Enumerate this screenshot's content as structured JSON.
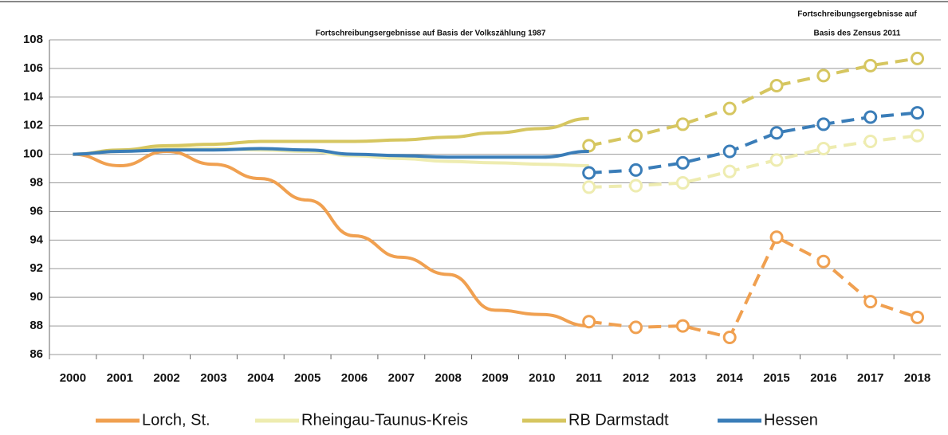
{
  "chart_data": {
    "type": "line",
    "annotations": [
      "Fortschreibungsergebnisse auf Basis der Volkszählung 1987",
      [
        "Fortschreibungsergebnisse auf",
        "Basis des Zensus 2011"
      ]
    ],
    "categories": [
      "2000",
      "2001",
      "2002",
      "2003",
      "2004",
      "2005",
      "2006",
      "2007",
      "2008",
      "2009",
      "2010",
      "2011",
      "2012",
      "2013",
      "2014",
      "2015",
      "2016",
      "2017",
      "2018"
    ],
    "series": [
      {
        "name": "Lorch, St.",
        "color": "#f0a050",
        "values": [
          100,
          99.2,
          100.2,
          99.3,
          98.3,
          96.8,
          94.3,
          92.8,
          91.6,
          89.1,
          88.8,
          88.0,
          null,
          null,
          null,
          null,
          null,
          null,
          null
        ],
        "zensus_values": [
          null,
          null,
          null,
          null,
          null,
          null,
          null,
          null,
          null,
          null,
          null,
          88.3,
          87.9,
          88.0,
          87.2,
          94.2,
          92.5,
          89.7,
          88.6
        ]
      },
      {
        "name": "Rheingau-Taunus-Kreis",
        "color": "#eeecb0",
        "values": [
          100,
          100.2,
          100.4,
          100.4,
          100.3,
          100.2,
          99.9,
          99.7,
          99.5,
          99.4,
          99.3,
          99.2,
          null,
          null,
          null,
          null,
          null,
          null,
          null
        ],
        "zensus_values": [
          null,
          null,
          null,
          null,
          null,
          null,
          null,
          null,
          null,
          null,
          null,
          97.7,
          97.8,
          98.0,
          98.8,
          99.6,
          100.4,
          100.9,
          101.3
        ]
      },
      {
        "name": "RB Darmstadt",
        "color": "#d6c660",
        "values": [
          100,
          100.3,
          100.6,
          100.7,
          100.9,
          100.9,
          100.9,
          101.0,
          101.2,
          101.5,
          101.8,
          102.5,
          null,
          null,
          null,
          null,
          null,
          null,
          null
        ],
        "zensus_values": [
          null,
          null,
          null,
          null,
          null,
          null,
          null,
          null,
          null,
          null,
          null,
          100.6,
          101.3,
          102.1,
          103.2,
          104.8,
          105.5,
          106.2,
          106.7
        ]
      },
      {
        "name": "Hessen",
        "color": "#3a7db8",
        "values": [
          100,
          100.2,
          100.3,
          100.3,
          100.4,
          100.3,
          100.0,
          99.9,
          99.8,
          99.8,
          99.8,
          100.2,
          null,
          null,
          null,
          null,
          null,
          null,
          null
        ],
        "zensus_values": [
          null,
          null,
          null,
          null,
          null,
          null,
          null,
          null,
          null,
          null,
          null,
          98.7,
          98.9,
          99.4,
          100.2,
          101.5,
          102.1,
          102.6,
          102.9
        ]
      }
    ],
    "ylim": [
      86,
      108
    ],
    "yticks": [
      86,
      88,
      90,
      92,
      94,
      96,
      98,
      100,
      102,
      104,
      106,
      108
    ],
    "grid": true,
    "legend": "bottom"
  }
}
